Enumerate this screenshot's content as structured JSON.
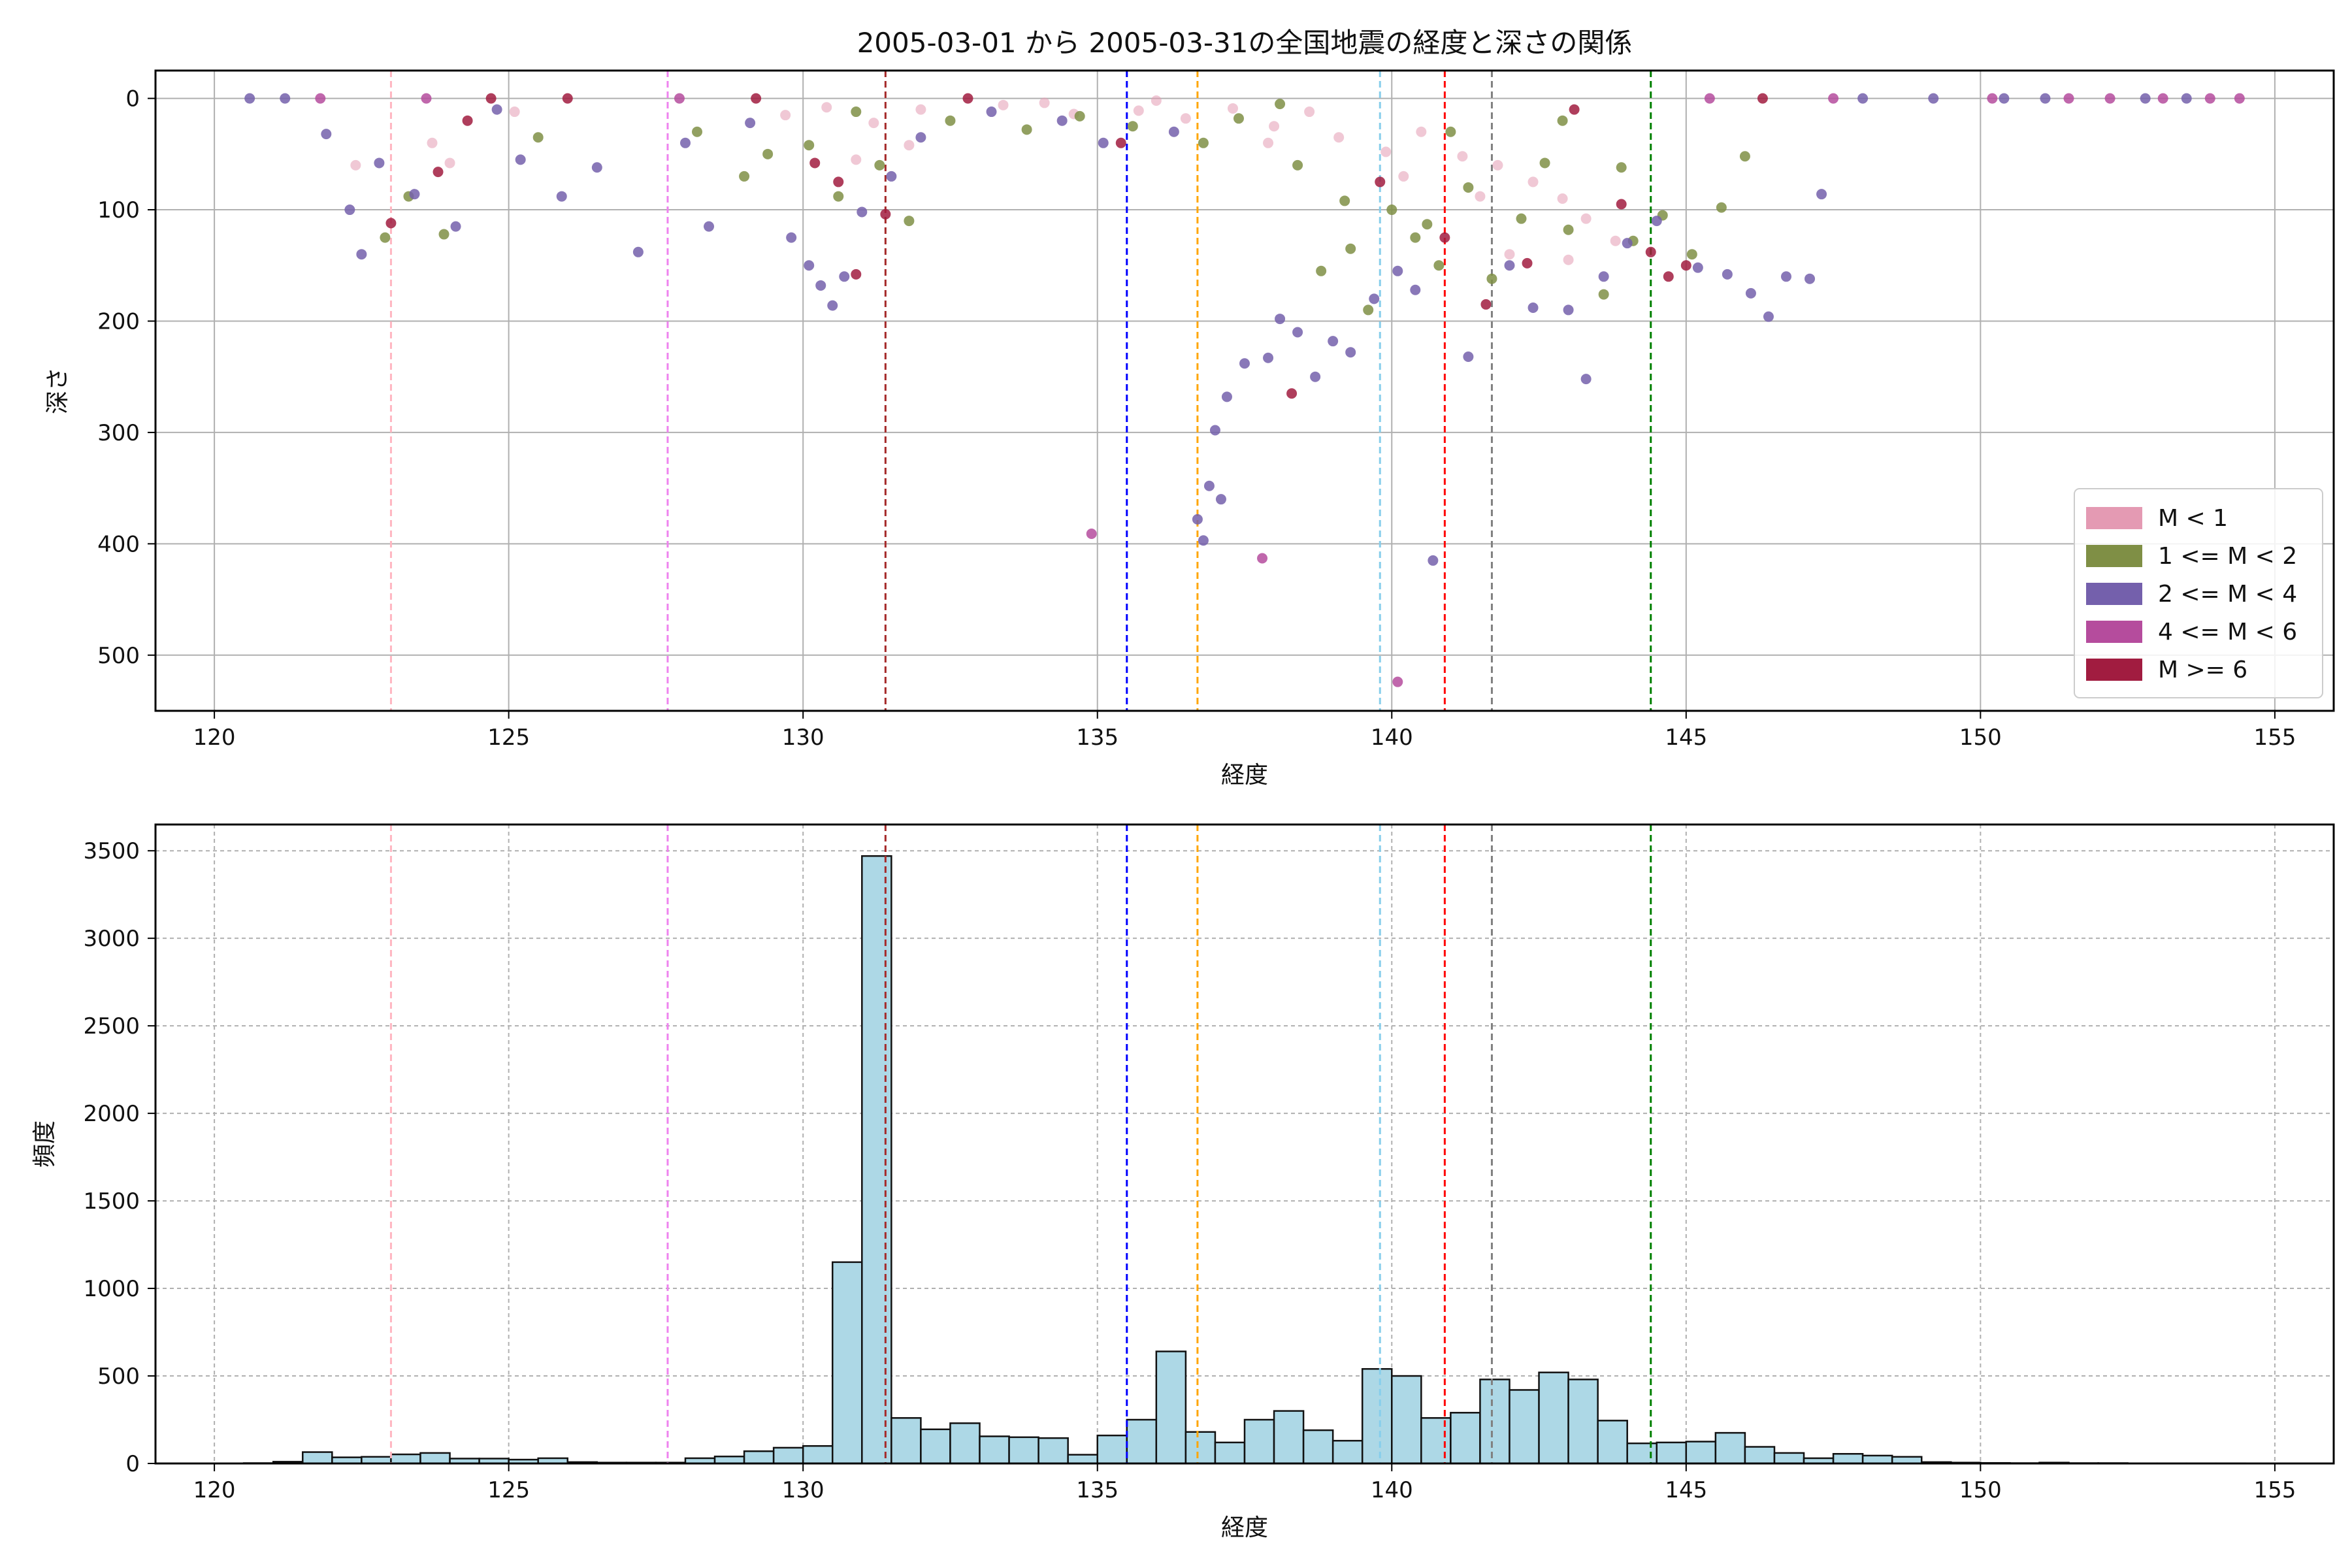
{
  "title": "2005-03-01 から 2005-03-31の全国地震の経度と深さの関係",
  "colors": {
    "m_lt1": "#e49ab3",
    "m_1_2": "#7f8f45",
    "m_2_4": "#7460ac",
    "m_4_6": "#b54c9d",
    "m_ge6": "#a11c40",
    "hist_bar": "#add8e6",
    "hist_edge": "#111111"
  },
  "chart_data": [
    {
      "type": "scatter",
      "xlabel": "経度",
      "ylabel": "深さ",
      "xlim": [
        119,
        156
      ],
      "ylim": [
        550,
        -25
      ],
      "y_inverted": true,
      "grid": true,
      "xticks": [
        "120",
        "125",
        "130",
        "135",
        "140",
        "145",
        "150",
        "155"
      ],
      "yticks": [
        "0",
        "100",
        "200",
        "300",
        "400",
        "500"
      ],
      "legend": {
        "placement": "lower-right",
        "entries": [
          "M < 1",
          "1 <= M < 2",
          "2 <= M < 4",
          "4 <= M < 6",
          "M >= 6"
        ]
      },
      "vlines": [
        {
          "x": 123.0,
          "color": "#ffb6c1"
        },
        {
          "x": 127.7,
          "color": "#ee82ee"
        },
        {
          "x": 131.4,
          "color": "#a52a2a"
        },
        {
          "x": 135.5,
          "color": "#0000ff"
        },
        {
          "x": 136.7,
          "color": "#ffa500"
        },
        {
          "x": 139.8,
          "color": "#87ceeb"
        },
        {
          "x": 140.9,
          "color": "#ff0000"
        },
        {
          "x": 141.7,
          "color": "#808080"
        },
        {
          "x": 144.4,
          "color": "#008000"
        }
      ],
      "series": [
        {
          "name": "M < 1",
          "points": [
            [
              125.1,
              12
            ],
            [
              129.7,
              15
            ],
            [
              130.4,
              8
            ],
            [
              131.2,
              22
            ],
            [
              132.0,
              10
            ],
            [
              133.4,
              6
            ],
            [
              134.6,
              14
            ],
            [
              136.5,
              18
            ],
            [
              137.3,
              9
            ],
            [
              138.0,
              25
            ],
            [
              139.1,
              35
            ],
            [
              139.9,
              48
            ],
            [
              140.5,
              30
            ],
            [
              141.2,
              52
            ],
            [
              141.8,
              60
            ],
            [
              142.4,
              75
            ],
            [
              142.9,
              90
            ],
            [
              143.3,
              108
            ],
            [
              143.8,
              128
            ],
            [
              141.5,
              88
            ],
            [
              140.2,
              70
            ],
            [
              134.1,
              4
            ],
            [
              135.7,
              11
            ],
            [
              136.0,
              2
            ],
            [
              137.9,
              40
            ],
            [
              138.6,
              12
            ],
            [
              142.0,
              140
            ],
            [
              143.0,
              145
            ],
            [
              131.8,
              42
            ],
            [
              130.9,
              55
            ],
            [
              124.0,
              58
            ],
            [
              123.7,
              40
            ],
            [
              122.4,
              60
            ]
          ]
        },
        {
          "name": "1 <= M < 2",
          "points": [
            [
              122.9,
              125
            ],
            [
              123.3,
              88
            ],
            [
              123.9,
              122
            ],
            [
              125.5,
              35
            ],
            [
              128.2,
              30
            ],
            [
              129.4,
              50
            ],
            [
              130.1,
              42
            ],
            [
              130.9,
              12
            ],
            [
              131.8,
              110
            ],
            [
              132.5,
              20
            ],
            [
              133.8,
              28
            ],
            [
              134.7,
              16
            ],
            [
              135.6,
              25
            ],
            [
              136.8,
              40
            ],
            [
              137.4,
              18
            ],
            [
              138.1,
              5
            ],
            [
              138.8,
              155
            ],
            [
              139.3,
              135
            ],
            [
              139.6,
              190
            ],
            [
              140.0,
              100
            ],
            [
              140.4,
              125
            ],
            [
              140.8,
              150
            ],
            [
              141.3,
              80
            ],
            [
              141.7,
              162
            ],
            [
              142.2,
              108
            ],
            [
              142.6,
              58
            ],
            [
              143.0,
              118
            ],
            [
              143.6,
              176
            ],
            [
              144.1,
              128
            ],
            [
              144.6,
              105
            ],
            [
              145.1,
              140
            ],
            [
              145.6,
              98
            ],
            [
              146.0,
              52
            ],
            [
              138.4,
              60
            ],
            [
              139.2,
              92
            ],
            [
              140.6,
              113
            ],
            [
              141.0,
              30
            ],
            [
              142.9,
              20
            ],
            [
              143.9,
              62
            ],
            [
              129.0,
              70
            ],
            [
              130.6,
              88
            ],
            [
              131.3,
              60
            ]
          ]
        },
        {
          "name": "2 <= M < 4",
          "points": [
            [
              120.6,
              0
            ],
            [
              121.2,
              0
            ],
            [
              121.9,
              32
            ],
            [
              122.3,
              100
            ],
            [
              122.5,
              140
            ],
            [
              122.8,
              58
            ],
            [
              123.4,
              86
            ],
            [
              124.1,
              115
            ],
            [
              124.8,
              10
            ],
            [
              125.2,
              55
            ],
            [
              125.9,
              88
            ],
            [
              126.5,
              62
            ],
            [
              127.2,
              138
            ],
            [
              128.0,
              40
            ],
            [
              128.4,
              115
            ],
            [
              129.1,
              22
            ],
            [
              129.8,
              125
            ],
            [
              130.1,
              150
            ],
            [
              130.3,
              168
            ],
            [
              130.5,
              186
            ],
            [
              130.7,
              160
            ],
            [
              131.0,
              102
            ],
            [
              131.5,
              70
            ],
            [
              132.0,
              35
            ],
            [
              133.2,
              12
            ],
            [
              134.4,
              20
            ],
            [
              135.1,
              40
            ],
            [
              136.3,
              30
            ],
            [
              136.7,
              378
            ],
            [
              136.8,
              397
            ],
            [
              136.9,
              348
            ],
            [
              137.1,
              360
            ],
            [
              137.0,
              298
            ],
            [
              137.2,
              268
            ],
            [
              137.5,
              238
            ],
            [
              137.9,
              233
            ],
            [
              138.1,
              198
            ],
            [
              138.4,
              210
            ],
            [
              138.7,
              250
            ],
            [
              139.0,
              218
            ],
            [
              139.3,
              228
            ],
            [
              139.7,
              180
            ],
            [
              140.1,
              155
            ],
            [
              140.4,
              172
            ],
            [
              140.7,
              415
            ],
            [
              141.3,
              232
            ],
            [
              142.0,
              150
            ],
            [
              142.4,
              188
            ],
            [
              143.0,
              190
            ],
            [
              143.3,
              252
            ],
            [
              143.6,
              160
            ],
            [
              144.0,
              130
            ],
            [
              144.5,
              110
            ],
            [
              145.2,
              152
            ],
            [
              145.7,
              158
            ],
            [
              146.1,
              175
            ],
            [
              146.4,
              196
            ],
            [
              146.7,
              160
            ],
            [
              147.1,
              162
            ],
            [
              147.3,
              86
            ],
            [
              148.0,
              0
            ],
            [
              149.2,
              0
            ],
            [
              150.4,
              0
            ],
            [
              151.1,
              0
            ],
            [
              152.8,
              0
            ],
            [
              153.5,
              0
            ]
          ]
        },
        {
          "name": "4 <= M < 6",
          "points": [
            [
              121.8,
              0
            ],
            [
              123.6,
              0
            ],
            [
              127.9,
              0
            ],
            [
              134.9,
              391
            ],
            [
              137.8,
              413
            ],
            [
              140.1,
              524
            ],
            [
              145.4,
              0
            ],
            [
              147.5,
              0
            ],
            [
              150.2,
              0
            ],
            [
              151.5,
              0
            ],
            [
              152.2,
              0
            ],
            [
              153.1,
              0
            ],
            [
              153.9,
              0
            ],
            [
              154.4,
              0
            ]
          ]
        },
        {
          "name": "M >= 6",
          "points": [
            [
              123.0,
              112
            ],
            [
              123.8,
              66
            ],
            [
              124.3,
              20
            ],
            [
              124.7,
              0
            ],
            [
              126.0,
              0
            ],
            [
              129.2,
              0
            ],
            [
              130.2,
              58
            ],
            [
              130.6,
              75
            ],
            [
              130.9,
              158
            ],
            [
              131.4,
              104
            ],
            [
              132.8,
              0
            ],
            [
              135.4,
              40
            ],
            [
              138.3,
              265
            ],
            [
              139.8,
              75
            ],
            [
              140.9,
              125
            ],
            [
              141.6,
              185
            ],
            [
              142.3,
              148
            ],
            [
              143.1,
              10
            ],
            [
              143.9,
              95
            ],
            [
              144.4,
              138
            ],
            [
              144.7,
              160
            ],
            [
              145.0,
              150
            ],
            [
              146.3,
              0
            ]
          ]
        }
      ]
    },
    {
      "type": "bar",
      "xlabel": "経度",
      "ylabel": "頻度",
      "xlim": [
        119,
        156
      ],
      "ylim": [
        0,
        3650
      ],
      "grid": true,
      "xticks": [
        "120",
        "125",
        "130",
        "135",
        "140",
        "145",
        "150",
        "155"
      ],
      "yticks": [
        "0",
        "500",
        "1000",
        "1500",
        "2000",
        "2500",
        "3000",
        "3500"
      ],
      "bin_start": 120.5,
      "bin_width": 0.5,
      "values": [
        2,
        10,
        65,
        35,
        38,
        52,
        60,
        28,
        28,
        22,
        30,
        8,
        5,
        5,
        5,
        30,
        40,
        70,
        90,
        100,
        1150,
        3470,
        260,
        195,
        230,
        155,
        150,
        145,
        50,
        160,
        250,
        640,
        180,
        120,
        250,
        300,
        190,
        130,
        540,
        500,
        260,
        290,
        480,
        420,
        520,
        480,
        245,
        115,
        120,
        125,
        175,
        95,
        60,
        30,
        55,
        45,
        38,
        8,
        5,
        3,
        2,
        5,
        2,
        2,
        1,
        1,
        1,
        1
      ],
      "vlines": [
        {
          "x": 123.0,
          "color": "#ffb6c1"
        },
        {
          "x": 127.7,
          "color": "#ee82ee"
        },
        {
          "x": 131.4,
          "color": "#a52a2a"
        },
        {
          "x": 135.5,
          "color": "#0000ff"
        },
        {
          "x": 136.7,
          "color": "#ffa500"
        },
        {
          "x": 139.8,
          "color": "#87ceeb"
        },
        {
          "x": 140.9,
          "color": "#ff0000"
        },
        {
          "x": 141.7,
          "color": "#808080"
        },
        {
          "x": 144.4,
          "color": "#008000"
        }
      ]
    }
  ]
}
